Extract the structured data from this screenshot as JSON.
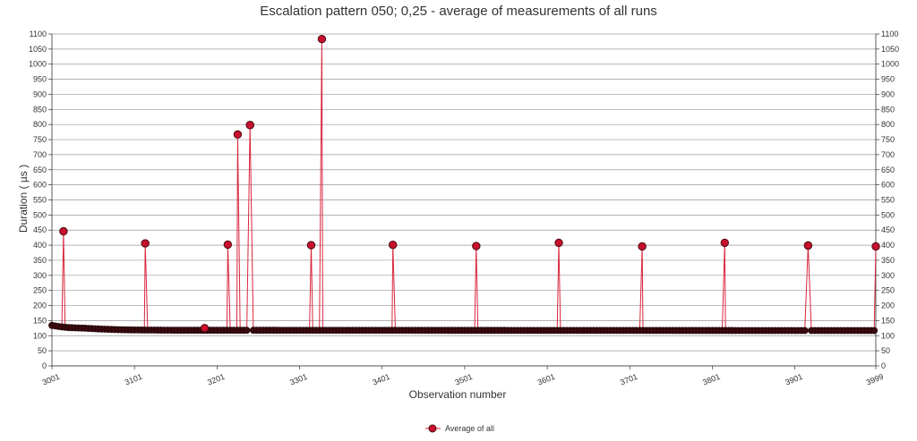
{
  "chart_data": {
    "type": "line",
    "title": "Escalation pattern 050; 0,25 - average of measurements of all runs",
    "xlabel": "Observation number",
    "ylabel": "Duration ( µs )",
    "xlim": [
      3001,
      3999
    ],
    "ylim": [
      0,
      1100
    ],
    "x_ticks": [
      "3001",
      "3101",
      "3201",
      "3301",
      "3401",
      "3501",
      "3601",
      "3701",
      "3801",
      "3901",
      "3999"
    ],
    "y_ticks": [
      "0",
      "50",
      "100",
      "150",
      "200",
      "250",
      "300",
      "350",
      "400",
      "450",
      "500",
      "550",
      "600",
      "650",
      "700",
      "750",
      "800",
      "850",
      "900",
      "950",
      "1000",
      "1050",
      "1100"
    ],
    "grid": true,
    "legend": {
      "position": "bottom-center"
    },
    "colors": {
      "line": "#d9253b",
      "marker_fill": "#c8102e",
      "marker_edge": "#4a0a10",
      "baseline_marker": "#3a0a0e"
    },
    "baseline": [
      {
        "x": 3001,
        "y": 134
      },
      {
        "x": 3010,
        "y": 130
      },
      {
        "x": 3020,
        "y": 127
      },
      {
        "x": 3040,
        "y": 125
      },
      {
        "x": 3060,
        "y": 122
      },
      {
        "x": 3080,
        "y": 120
      },
      {
        "x": 3100,
        "y": 119
      },
      {
        "x": 3150,
        "y": 118
      },
      {
        "x": 3250,
        "y": 118
      },
      {
        "x": 3999,
        "y": 117
      }
    ],
    "baseline_step": 4,
    "series": [
      {
        "name": "Average of all",
        "spikes": [
          {
            "x": 3015,
            "y": 446
          },
          {
            "x": 3114,
            "y": 406
          },
          {
            "x": 3186,
            "y": 125
          },
          {
            "x": 3214,
            "y": 402
          },
          {
            "x": 3226,
            "y": 767
          },
          {
            "x": 3241,
            "y": 798
          },
          {
            "x": 3315,
            "y": 400
          },
          {
            "x": 3328,
            "y": 1083
          },
          {
            "x": 3414,
            "y": 401
          },
          {
            "x": 3515,
            "y": 397
          },
          {
            "x": 3615,
            "y": 408
          },
          {
            "x": 3716,
            "y": 396
          },
          {
            "x": 3816,
            "y": 408
          },
          {
            "x": 3917,
            "y": 399
          },
          {
            "x": 4017,
            "y": 399
          },
          {
            "x": 3999,
            "y": 396
          }
        ]
      }
    ]
  }
}
